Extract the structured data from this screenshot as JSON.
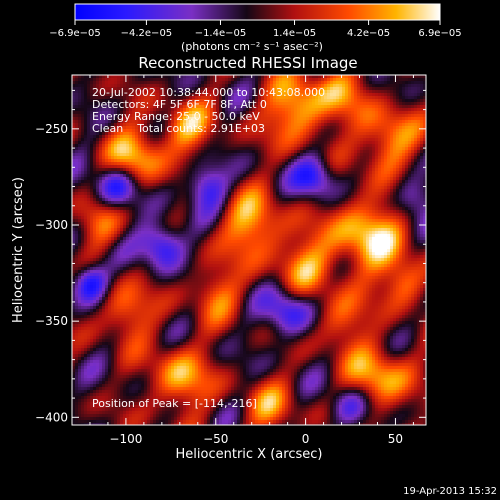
{
  "chart_data": {
    "type": "heatmap",
    "title": "Reconstructed RHESSI Image",
    "xlabel": "Heliocentric X (arcsec)",
    "ylabel": "Heliocentric Y (arcsec)",
    "xlim": [
      -130,
      67
    ],
    "ylim": [
      -404,
      -222
    ],
    "x_ticks": [
      -100,
      -50,
      0,
      50
    ],
    "x_tick_labels": [
      "−100",
      "−50",
      "0",
      "50"
    ],
    "y_ticks": [
      -400,
      -350,
      -300,
      -250
    ],
    "y_tick_labels": [
      "−400",
      "−350",
      "−300",
      "−250"
    ],
    "colorbar": {
      "range": [
        -6.9e-05,
        6.9e-05
      ],
      "ticks": [
        -6.9e-05,
        -4.2e-05,
        -1.4e-05,
        1.4e-05,
        4.2e-05,
        6.9e-05
      ],
      "tick_labels": [
        "−6.9e−05",
        "−4.2e−05",
        "−1.4e−05",
        "1.4e−05",
        "4.2e−05",
        "6.9e−05"
      ],
      "unit_label": "(photons cm⁻² s⁻¹ asec⁻²)",
      "colormap_stops": [
        {
          "v": 0.0,
          "color": "#0000ff"
        },
        {
          "v": 0.14,
          "color": "#2a1aff"
        },
        {
          "v": 0.32,
          "color": "#7a2fc4"
        },
        {
          "v": 0.47,
          "color": "#150716"
        },
        {
          "v": 0.6,
          "color": "#b01010"
        },
        {
          "v": 0.75,
          "color": "#ff4a00"
        },
        {
          "v": 0.88,
          "color": "#ffb400"
        },
        {
          "v": 1.0,
          "color": "#ffffff"
        }
      ]
    },
    "annotations": [
      "20-Jul-2002 10:38:44.000 to 10:43:08.000",
      "Detectors: 4F 5F 6F 7F 8F, Att 0",
      "Energy Range: 25.0 - 50.0 keV",
      "Clean    Total counts: 2.91E+03"
    ],
    "peak_label": "Position of Peak = [-114,-216]",
    "peak": {
      "x": -114,
      "y": -216
    },
    "grid": false
  },
  "timestamp": "19-Apr-2013 15:32"
}
